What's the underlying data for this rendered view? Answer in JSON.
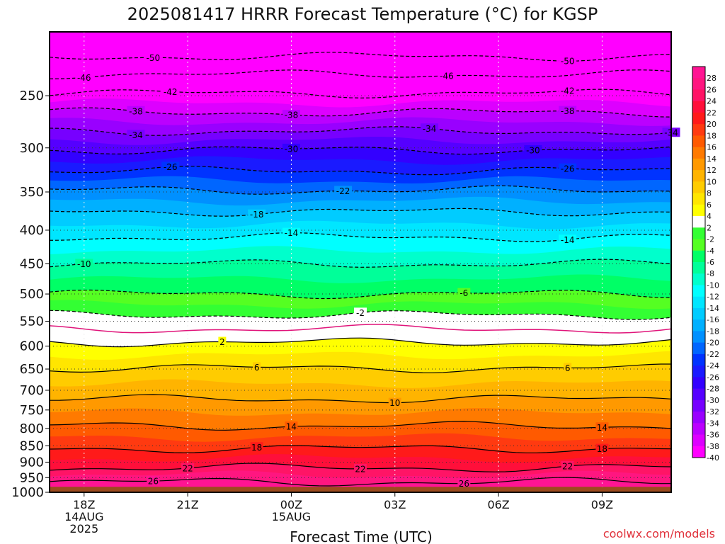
{
  "chart_data": {
    "type": "heatmap",
    "title": "2025081417 HRRR Forecast Temperature (°C) for KGSP",
    "xlabel": "Forecast Time (UTC)",
    "ylabel": "",
    "credit": "coolwx.com/models",
    "x_ticks": [
      {
        "hour": 0,
        "lines": [
          "18Z",
          "14AUG",
          "2025"
        ]
      },
      {
        "hour": 3,
        "lines": [
          "21Z"
        ]
      },
      {
        "hour": 6,
        "lines": [
          "00Z",
          "15AUG"
        ]
      },
      {
        "hour": 9,
        "lines": [
          "03Z"
        ]
      },
      {
        "hour": 12,
        "lines": [
          "06Z"
        ]
      },
      {
        "hour": 15,
        "lines": [
          "09Z"
        ]
      }
    ],
    "xlim_hours": [
      -1,
      17
    ],
    "y_ticks": [
      250,
      300,
      350,
      400,
      450,
      500,
      550,
      600,
      650,
      700,
      750,
      800,
      850,
      900,
      950,
      1000
    ],
    "ylim": [
      1000,
      200
    ],
    "surface_pressure": 981,
    "contour_interval": 4,
    "temp_profile": [
      {
        "p": 200,
        "t": -53
      },
      {
        "p": 218,
        "t": -50
      },
      {
        "p": 232,
        "t": -46
      },
      {
        "p": 248,
        "t": -42
      },
      {
        "p": 265,
        "t": -38
      },
      {
        "p": 283,
        "t": -34
      },
      {
        "p": 302,
        "t": -30
      },
      {
        "p": 325,
        "t": -26
      },
      {
        "p": 348,
        "t": -22
      },
      {
        "p": 375,
        "t": -18
      },
      {
        "p": 410,
        "t": -14
      },
      {
        "p": 450,
        "t": -10
      },
      {
        "p": 500,
        "t": -6
      },
      {
        "p": 538,
        "t": -2
      },
      {
        "p": 565,
        "t": 0
      },
      {
        "p": 592,
        "t": 2
      },
      {
        "p": 648,
        "t": 6
      },
      {
        "p": 722,
        "t": 10
      },
      {
        "p": 793,
        "t": 14
      },
      {
        "p": 858,
        "t": 18
      },
      {
        "p": 918,
        "t": 22
      },
      {
        "p": 965,
        "t": 26
      },
      {
        "p": 1000,
        "t": 28
      }
    ],
    "contour_labels": [
      {
        "value": -50,
        "hours": [
          2,
          14
        ]
      },
      {
        "value": -46,
        "hours": [
          0,
          10.5
        ]
      },
      {
        "value": -42,
        "hours": [
          2.5,
          14
        ]
      },
      {
        "value": -38,
        "hours": [
          1.5,
          6,
          14
        ]
      },
      {
        "value": -34,
        "hours": [
          1.5,
          10,
          17
        ]
      },
      {
        "value": -30,
        "hours": [
          6,
          13
        ]
      },
      {
        "value": -26,
        "hours": [
          2.5,
          14
        ]
      },
      {
        "value": -22,
        "hours": [
          7.5
        ]
      },
      {
        "value": -18,
        "hours": [
          5
        ]
      },
      {
        "value": -14,
        "hours": [
          6,
          14
        ]
      },
      {
        "value": -10,
        "hours": [
          0
        ]
      },
      {
        "value": -6,
        "hours": [
          11
        ]
      },
      {
        "value": -2,
        "hours": [
          8
        ]
      },
      {
        "value": 2,
        "hours": [
          4
        ]
      },
      {
        "value": 6,
        "hours": [
          5,
          14
        ]
      },
      {
        "value": 10,
        "hours": [
          9
        ]
      },
      {
        "value": 14,
        "hours": [
          6,
          15
        ]
      },
      {
        "value": 18,
        "hours": [
          5,
          15
        ]
      },
      {
        "value": 22,
        "hours": [
          3,
          8,
          14
        ]
      },
      {
        "value": 26,
        "hours": [
          2,
          11
        ]
      }
    ],
    "colorbar": {
      "ticks": [
        28,
        26,
        24,
        22,
        20,
        18,
        16,
        14,
        12,
        10,
        8,
        6,
        4,
        2,
        -2,
        -4,
        -6,
        -8,
        -10,
        -12,
        -14,
        -16,
        -18,
        -20,
        -22,
        -24,
        -26,
        -28,
        -30,
        -32,
        -34,
        -36,
        -38,
        -40
      ],
      "colors": [
        {
          "min": 26,
          "color": "#ff1493"
        },
        {
          "min": 24,
          "color": "#ff1680"
        },
        {
          "min": 22,
          "color": "#ff1466"
        },
        {
          "min": 20,
          "color": "#ff0f3a"
        },
        {
          "min": 18,
          "color": "#ff1a1a"
        },
        {
          "min": 16,
          "color": "#ff3a10"
        },
        {
          "min": 14,
          "color": "#ff5a00"
        },
        {
          "min": 12,
          "color": "#ff7a00"
        },
        {
          "min": 10,
          "color": "#ff9900"
        },
        {
          "min": 8,
          "color": "#ffb400"
        },
        {
          "min": 6,
          "color": "#ffcc00"
        },
        {
          "min": 4,
          "color": "#ffe600"
        },
        {
          "min": 2,
          "color": "#ffff00"
        },
        {
          "min": -2,
          "color": "#ffffff"
        },
        {
          "min": -4,
          "color": "#33ff33"
        },
        {
          "min": -6,
          "color": "#55ff22"
        },
        {
          "min": -8,
          "color": "#00ff66"
        },
        {
          "min": -10,
          "color": "#00ff99"
        },
        {
          "min": -12,
          "color": "#00ffcc"
        },
        {
          "min": -14,
          "color": "#00ffff"
        },
        {
          "min": -16,
          "color": "#00e6ff"
        },
        {
          "min": -18,
          "color": "#00ccff"
        },
        {
          "min": -20,
          "color": "#00b0ff"
        },
        {
          "min": -22,
          "color": "#0090ff"
        },
        {
          "min": -24,
          "color": "#0066ff"
        },
        {
          "min": -26,
          "color": "#0033ff"
        },
        {
          "min": -28,
          "color": "#1a1aff"
        },
        {
          "min": -30,
          "color": "#3300ff"
        },
        {
          "min": -32,
          "color": "#5500ff"
        },
        {
          "min": -34,
          "color": "#7700ff"
        },
        {
          "min": -36,
          "color": "#9900ff"
        },
        {
          "min": -38,
          "color": "#bb00ff"
        },
        {
          "min": -40,
          "color": "#dd00ff"
        },
        {
          "min": -999,
          "color": "#ff00ff"
        }
      ]
    },
    "ground_color": "#9c4b1e",
    "pos_contour_color": "#000000",
    "neg_contour_color": "#000000",
    "zero_contour_color": "#e0147a"
  }
}
